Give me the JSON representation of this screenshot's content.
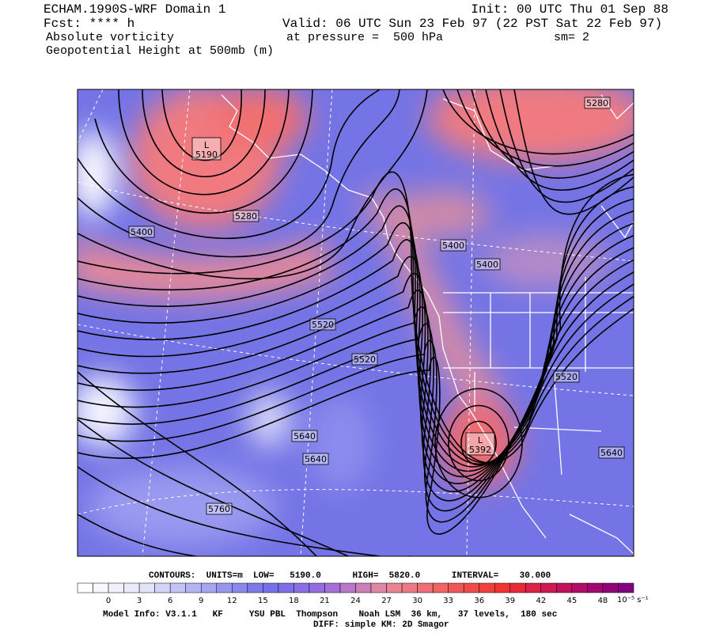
{
  "header": {
    "left": [
      "ECHAM.1990S-WRF Domain 1",
      "Fcst: **** h",
      "Absolute vorticity",
      "Geopotential Height at 500mb (m)"
    ],
    "init": "Init: 00 UTC Thu 01 Sep 88",
    "valid": "Valid: 06 UTC Sun 23 Feb 97 (22 PST Sat 22 Feb 97)",
    "pressure": "at pressure =  500 hPa",
    "smoothing": "sm= 2"
  },
  "map": {
    "contour_labels": [
      "5280",
      "5400",
      "5280",
      "5400",
      "5400",
      "5520",
      "5520",
      "5520",
      "5640",
      "5640",
      "5640",
      "5760"
    ],
    "lows": [
      {
        "symbol": "L",
        "value": "5190"
      },
      {
        "symbol": "L",
        "value": "5392"
      }
    ]
  },
  "colorbar": {
    "ticks": [
      0,
      3,
      6,
      9,
      12,
      15,
      18,
      21,
      24,
      27,
      30,
      33,
      36,
      39,
      42,
      45,
      48
    ],
    "unit": "10⁻⁵ s⁻¹",
    "colors": [
      "#ffffff",
      "#e4e4fa",
      "#a8a8f0",
      "#7070ea",
      "#9a6ee0",
      "#e88aa0",
      "#f06060",
      "#f03030",
      "#c01060",
      "#800080"
    ]
  },
  "footer": {
    "contours": "CONTOURS:  UNITS=m  LOW=   5190.0      HIGH=  5820.0      INTERVAL=    30.000",
    "model_info": "Model Info: V3.1.1   KF     YSU PBL  Thompson    Noah LSM  36 km,   37 levels,  180 sec",
    "diff": "DIFF: simple KM: 2D Smagor"
  }
}
